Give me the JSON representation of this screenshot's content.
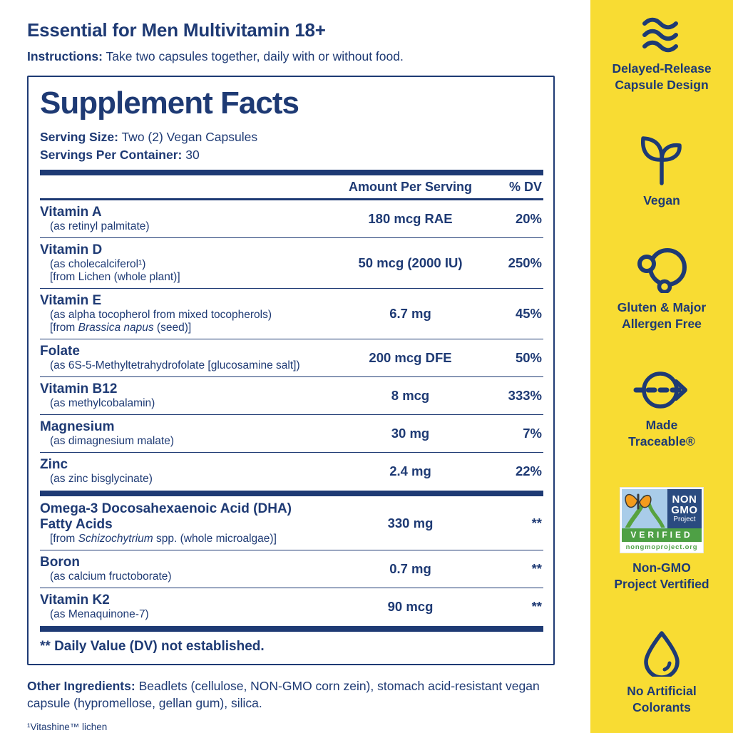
{
  "colors": {
    "navy": "#1e3a74",
    "yellow": "#f8dc33",
    "badge_blue": "#2a4b80",
    "badge_green": "#4ea045",
    "badge_sky": "#a9cce9",
    "butterfly_orange": "#f39b1d"
  },
  "header": {
    "title": "Essential for Men Multivitamin 18+",
    "instructions_label": "Instructions:",
    "instructions_text": "Take two capsules together, daily with or without food."
  },
  "panel": {
    "title": "Supplement Facts",
    "serving_size_label": "Serving Size:",
    "serving_size_value": "Two (2) Vegan Capsules",
    "servings_label": "Servings Per Container:",
    "servings_value": "30",
    "col_amount": "Amount Per Serving",
    "col_dv": "% DV",
    "groups": [
      {
        "rows": [
          {
            "name_lines": [
              "Vitamin A"
            ],
            "subs": [
              [
                {
                  "t": "(as retinyl palmitate)"
                }
              ]
            ],
            "amount": "180 mcg RAE",
            "dv": "20%"
          },
          {
            "name_lines": [
              "Vitamin D"
            ],
            "subs": [
              [
                {
                  "t": "(as cholecalciferol¹)"
                }
              ],
              [
                {
                  "t": "[from Lichen (whole plant)]"
                }
              ]
            ],
            "amount": "50 mcg (2000 IU)",
            "dv": "250%"
          },
          {
            "name_lines": [
              "Vitamin E"
            ],
            "subs": [
              [
                {
                  "t": "(as alpha tocopherol from mixed tocopherols)"
                }
              ],
              [
                {
                  "t": "[from "
                },
                {
                  "t": "Brassica napus",
                  "i": true
                },
                {
                  "t": " (seed)]"
                }
              ]
            ],
            "amount": "6.7 mg",
            "dv": "45%"
          },
          {
            "name_lines": [
              "Folate"
            ],
            "subs": [
              [
                {
                  "t": "(as 6S-5-Methyltetrahydrofolate [glucosamine salt])"
                }
              ]
            ],
            "amount": "200 mcg DFE",
            "dv": "50%"
          },
          {
            "name_lines": [
              "Vitamin B12"
            ],
            "subs": [
              [
                {
                  "t": "(as methylcobalamin)"
                }
              ]
            ],
            "amount": "8 mcg",
            "dv": "333%"
          },
          {
            "name_lines": [
              "Magnesium"
            ],
            "subs": [
              [
                {
                  "t": "(as dimagnesium malate)"
                }
              ]
            ],
            "amount": "30 mg",
            "dv": "7%"
          },
          {
            "name_lines": [
              "Zinc"
            ],
            "subs": [
              [
                {
                  "t": "(as zinc bisglycinate)"
                }
              ]
            ],
            "amount": "2.4 mg",
            "dv": "22%"
          }
        ]
      },
      {
        "rows": [
          {
            "name_lines": [
              "Omega-3 Docosahexaenoic Acid (DHA)",
              "Fatty Acids"
            ],
            "subs": [
              [
                {
                  "t": "[from "
                },
                {
                  "t": "Schizochytrium",
                  "i": true
                },
                {
                  "t": " spp. (whole microalgae)]"
                }
              ]
            ],
            "amount": "330 mg",
            "dv": "**"
          },
          {
            "name_lines": [
              "Boron"
            ],
            "subs": [
              [
                {
                  "t": "(as calcium fructoborate)"
                }
              ]
            ],
            "amount": "0.7 mg",
            "dv": "**"
          },
          {
            "name_lines": [
              "Vitamin K2"
            ],
            "subs": [
              [
                {
                  "t": "(as Menaquinone-7)"
                }
              ]
            ],
            "amount": "90 mcg",
            "dv": "**"
          }
        ]
      }
    ],
    "dv_note": "** Daily Value (DV) not established."
  },
  "other_ingredients": {
    "label": "Other Ingredients:",
    "text": "Beadlets (cellulose, NON-GMO corn zein), stomach acid-resistant vegan capsule (hypromellose, gellan gum), silica."
  },
  "footnote": "¹Vitashine™ lichen",
  "sidebar": {
    "items": [
      {
        "icon": "waves-icon",
        "lines": [
          "Delayed-Release",
          "Capsule Design"
        ]
      },
      {
        "icon": "plant-icon",
        "lines": [
          "Vegan"
        ]
      },
      {
        "icon": "allergen-free-icon",
        "lines": [
          "Gluten & Major",
          "Allergen Free"
        ]
      },
      {
        "icon": "traceable-icon",
        "lines": [
          "Made",
          "Traceable®"
        ]
      },
      {
        "icon": "non-gmo-badge",
        "lines": [
          "Non-GMO",
          "Project Vertified"
        ],
        "badge": {
          "word1": "NON",
          "word2": "GMO",
          "word3": "Project",
          "band": "VERIFIED",
          "url": "nongmoproject.org"
        }
      },
      {
        "icon": "droplet-icon",
        "lines": [
          "No Artificial",
          "Colorants"
        ]
      }
    ]
  }
}
